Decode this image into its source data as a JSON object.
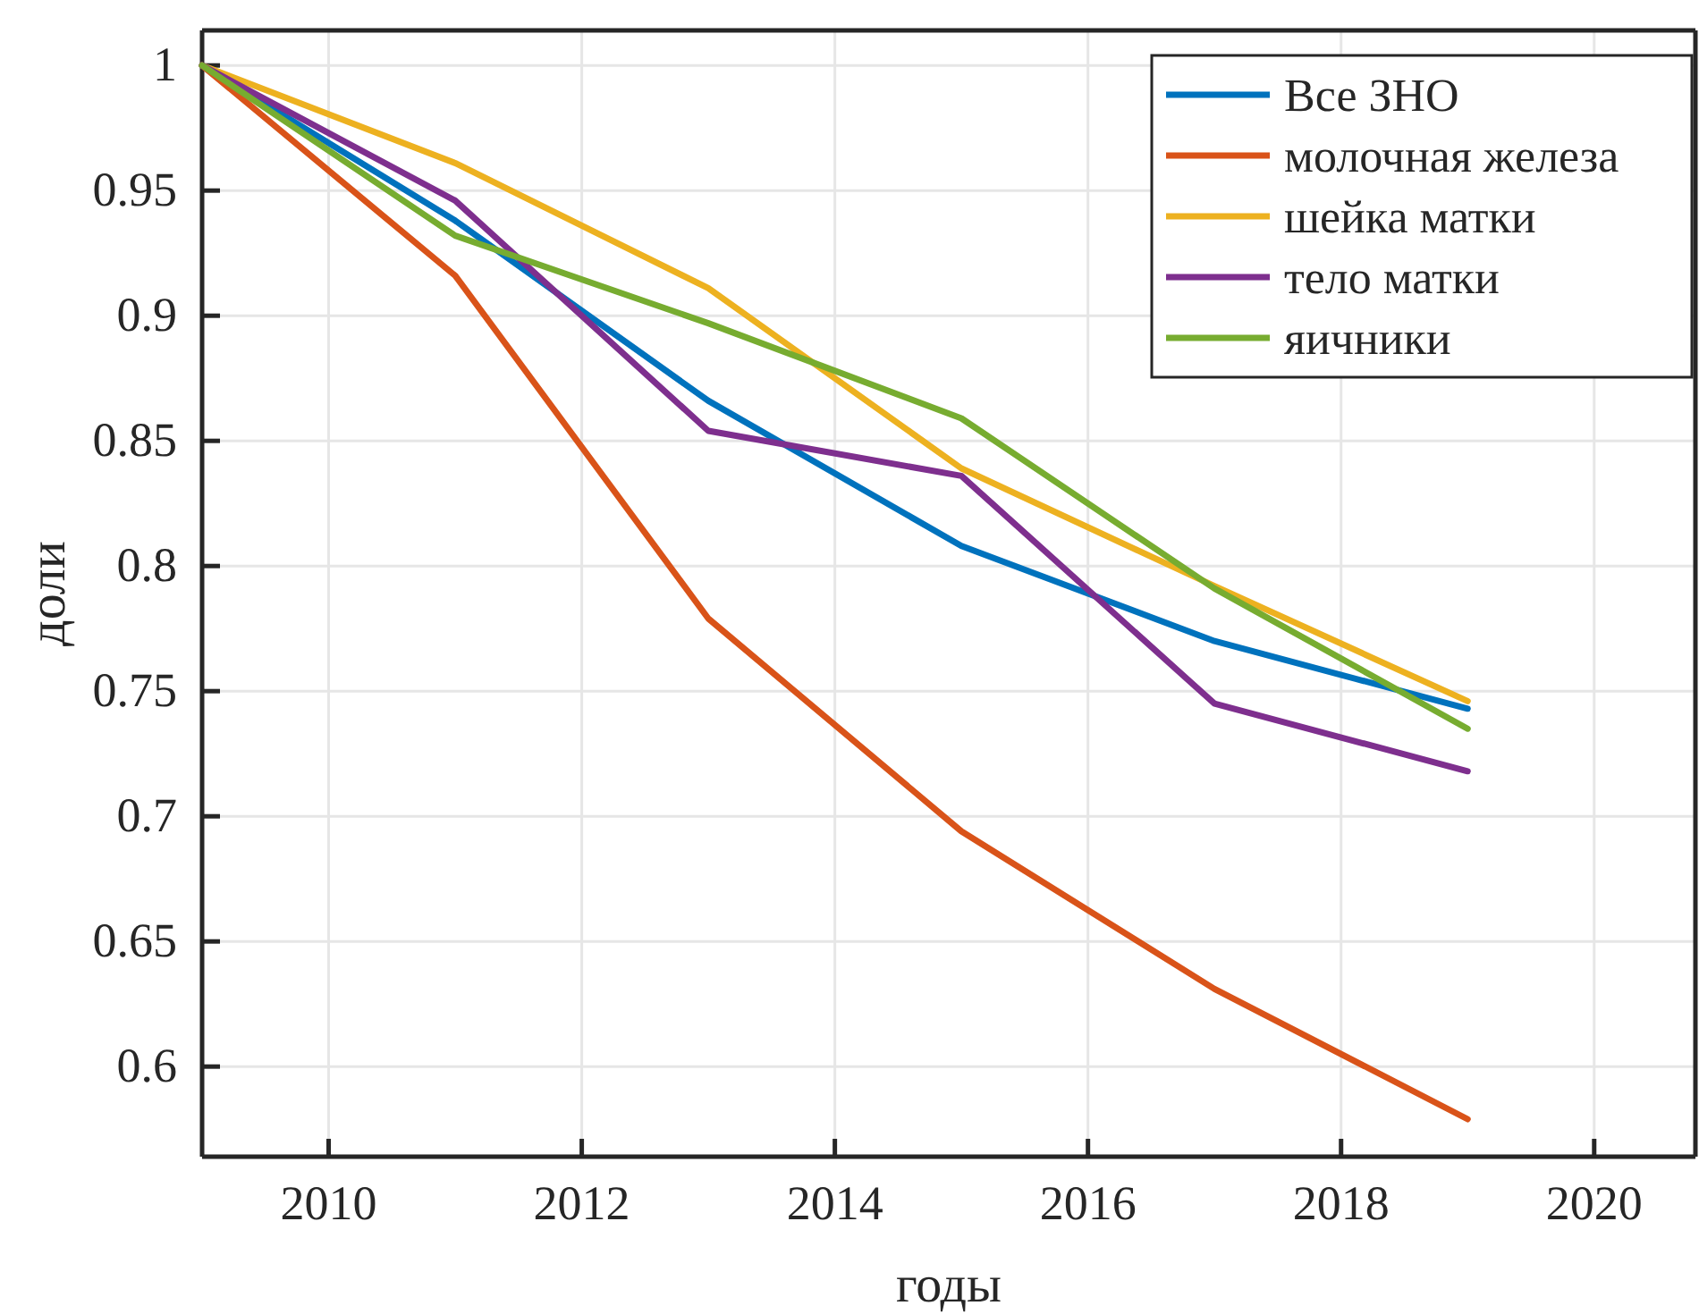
{
  "chart_data": {
    "type": "line",
    "xlabel": "годы",
    "ylabel": "доли",
    "x": [
      2009,
      2011,
      2013,
      2015,
      2017,
      2019
    ],
    "series": [
      {
        "name": "Все ЗНО",
        "color": "#0072bd",
        "values": [
          1,
          0.938,
          0.866,
          0.808,
          0.77,
          0.743
        ]
      },
      {
        "name": "молочная железа",
        "color": "#d95319",
        "values": [
          1,
          0.916,
          0.779,
          0.694,
          0.631,
          0.579
        ]
      },
      {
        "name": "шейка матки",
        "color": "#edb120",
        "values": [
          1,
          0.961,
          0.911,
          0.839,
          0.792,
          0.746
        ]
      },
      {
        "name": "тело матки",
        "color": "#7e2f8e",
        "values": [
          1,
          0.946,
          0.854,
          0.836,
          0.745,
          0.718
        ]
      },
      {
        "name": "яичники",
        "color": "#77ac30",
        "values": [
          1,
          0.932,
          0.897,
          0.859,
          0.791,
          0.735
        ]
      }
    ],
    "xlim": [
      2009,
      2020.8
    ],
    "xticks": [
      2010,
      2012,
      2014,
      2016,
      2018,
      2020
    ],
    "ylim": [
      0.564,
      1.014
    ],
    "yticks": [
      0.6,
      0.65,
      0.7,
      0.75,
      0.8,
      0.85,
      0.9,
      0.95,
      1
    ],
    "grid": true,
    "legend": "top right",
    "marker": "none",
    "line_style": "solid"
  }
}
